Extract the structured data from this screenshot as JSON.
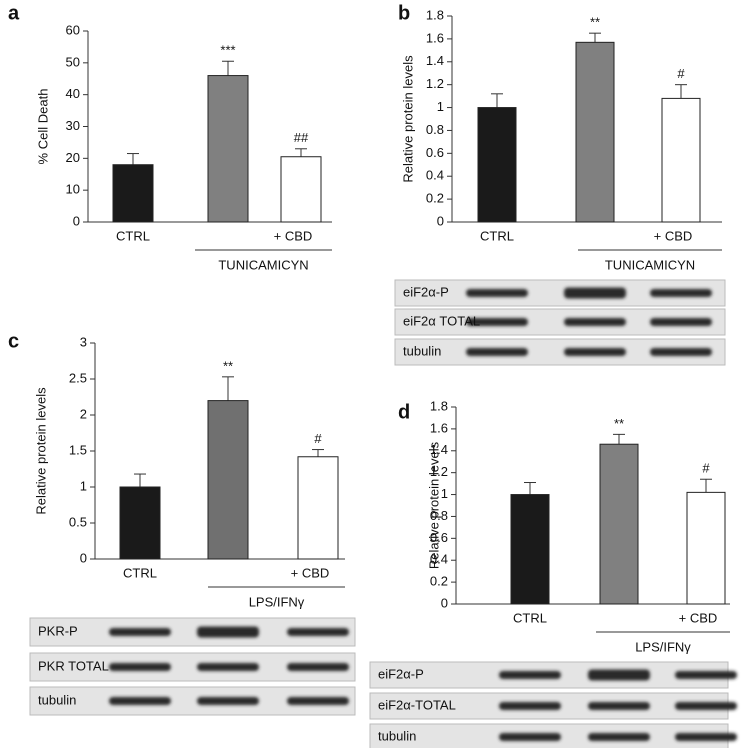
{
  "chart_data": [
    {
      "type": "bar",
      "panel": "a",
      "ylabel": "% Cell Death",
      "categories": [
        "CTRL",
        null,
        "+ CBD"
      ],
      "values": [
        18,
        46,
        20.5
      ],
      "errors": [
        3.5,
        4.5,
        2.5
      ],
      "annotations": [
        null,
        "***",
        "##"
      ],
      "colors": [
        "#1a1a1a",
        "#808080",
        "#ffffff"
      ],
      "group_label": "TUNICAMICYN",
      "ylim": [
        0,
        60
      ],
      "yticks": [
        0,
        10,
        20,
        30,
        40,
        50,
        60
      ]
    },
    {
      "type": "bar",
      "panel": "b",
      "ylabel": "Relative protein levels",
      "categories": [
        "CTRL",
        null,
        "+ CBD"
      ],
      "values": [
        1,
        1.57,
        1.08
      ],
      "errors": [
        0.12,
        0.08,
        0.12
      ],
      "annotations": [
        null,
        "**",
        "#"
      ],
      "colors": [
        "#1a1a1a",
        "#808080",
        "#ffffff"
      ],
      "group_label": "TUNICAMICYN",
      "ylim": [
        0,
        1.8
      ],
      "yticks": [
        0,
        0.2,
        0.4,
        0.6,
        0.8,
        1,
        1.2,
        1.4,
        1.6,
        1.8
      ],
      "blot_labels": [
        "eiF2α-P",
        "eiF2α TOTAL",
        "tubulin"
      ]
    },
    {
      "type": "bar",
      "panel": "c",
      "ylabel": "Relative protein levels",
      "categories": [
        "CTRL",
        null,
        "+ CBD"
      ],
      "values": [
        1,
        2.2,
        1.42
      ],
      "errors": [
        0.18,
        0.33,
        0.1
      ],
      "annotations": [
        null,
        "**",
        "#"
      ],
      "colors": [
        "#1a1a1a",
        "#707070",
        "#ffffff"
      ],
      "group_label": "LPS/IFNγ",
      "ylim": [
        0,
        3
      ],
      "yticks": [
        0,
        0.5,
        1,
        1.5,
        2,
        2.5,
        3
      ],
      "blot_labels": [
        "PKR-P",
        "PKR TOTAL",
        "tubulin"
      ]
    },
    {
      "type": "bar",
      "panel": "d",
      "ylabel": "Relative protein levels",
      "categories": [
        "CTRL",
        null,
        "+ CBD"
      ],
      "values": [
        1,
        1.46,
        1.02
      ],
      "errors": [
        0.11,
        0.09,
        0.12
      ],
      "annotations": [
        null,
        "**",
        "#"
      ],
      "colors": [
        "#1a1a1a",
        "#808080",
        "#ffffff"
      ],
      "group_label": "LPS/IFNγ",
      "ylim": [
        0,
        1.8
      ],
      "yticks": [
        0,
        0.2,
        0.4,
        0.6,
        0.8,
        1,
        1.2,
        1.4,
        1.6,
        1.8
      ],
      "blot_labels": [
        "eiF2α-P",
        "eiF2α-TOTAL",
        "tubulin"
      ]
    }
  ]
}
